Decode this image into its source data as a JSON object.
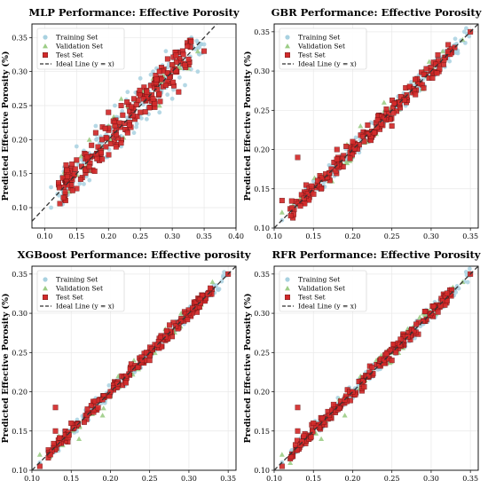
{
  "colors": {
    "training": "#a8d1e0",
    "validation": "#9ccd86",
    "test": "#d32a2a",
    "test_edge": "#5a1010",
    "ideal_line": "#333333"
  },
  "chart_data": [
    {
      "type": "scatter",
      "title": "MLP Performance: Effective Porosity",
      "xlabel": "",
      "ylabel": "Predicted Effective Porosity (%)",
      "xlim": [
        0.08,
        0.4
      ],
      "ylim": [
        0.07,
        0.37
      ],
      "xticks": [
        "0.10",
        "0.15",
        "0.20",
        "0.25",
        "0.30",
        "0.35",
        "0.40"
      ],
      "yticks": [
        "0.10",
        "0.15",
        "0.20",
        "0.25",
        "0.30",
        "0.35"
      ],
      "legend": [
        "Training Set",
        "Validation Set",
        "Test Set",
        "Ideal Line (y = x)"
      ],
      "legend_position": "top-left",
      "grid": true,
      "model_noise": 0.022,
      "series": [
        {
          "name": "Training Set",
          "x": [
            0.11,
            0.11,
            0.12,
            0.13,
            0.13,
            0.15,
            0.16,
            0.17,
            0.18,
            0.19,
            0.2,
            0.21,
            0.22,
            0.23,
            0.24,
            0.25,
            0.26,
            0.27,
            0.28,
            0.29,
            0.3,
            0.31,
            0.32,
            0.33,
            0.34,
            0.35
          ],
          "y": [
            0.1,
            0.13,
            0.12,
            0.11,
            0.14,
            0.19,
            0.17,
            0.18,
            0.22,
            0.17,
            0.22,
            0.25,
            0.19,
            0.27,
            0.21,
            0.29,
            0.23,
            0.3,
            0.24,
            0.33,
            0.26,
            0.33,
            0.28,
            0.35,
            0.3,
            0.34
          ]
        },
        {
          "name": "Validation Set",
          "x": [
            0.17,
            0.2,
            0.22,
            0.24,
            0.26,
            0.27,
            0.28,
            0.3,
            0.34
          ],
          "y": [
            0.2,
            0.22,
            0.26,
            0.23,
            0.27,
            0.29,
            0.25,
            0.31,
            0.33
          ]
        },
        {
          "name": "Test Set",
          "x": [
            0.13,
            0.15,
            0.17,
            0.18,
            0.19,
            0.2,
            0.21,
            0.22,
            0.23,
            0.24,
            0.25,
            0.26,
            0.27,
            0.28,
            0.29,
            0.3,
            0.31,
            0.35
          ],
          "y": [
            0.13,
            0.17,
            0.16,
            0.21,
            0.2,
            0.24,
            0.22,
            0.25,
            0.21,
            0.26,
            0.24,
            0.27,
            0.26,
            0.3,
            0.28,
            0.31,
            0.27,
            0.33
          ]
        }
      ]
    },
    {
      "type": "scatter",
      "title": "GBR Performance: Effective Porosity",
      "xlabel": "",
      "ylabel": "Predicted Effective Porosity (%)",
      "xlim": [
        0.1,
        0.36
      ],
      "ylim": [
        0.1,
        0.36
      ],
      "xticks": [
        "0.10",
        "0.15",
        "0.20",
        "0.25",
        "0.30",
        "0.35"
      ],
      "yticks": [
        "0.10",
        "0.15",
        "0.20",
        "0.25",
        "0.30",
        "0.35"
      ],
      "legend": [
        "Training Set",
        "Validation Set",
        "Test Set",
        "Ideal Line (y = x)"
      ],
      "legend_position": "top-left",
      "grid": true,
      "model_noise": 0.01,
      "series": [
        {
          "name": "Training Set",
          "x": [
            0.11,
            0.15,
            0.17,
            0.19,
            0.21,
            0.23,
            0.25,
            0.27,
            0.29,
            0.31,
            0.33
          ],
          "y": [
            0.11,
            0.16,
            0.18,
            0.19,
            0.22,
            0.23,
            0.25,
            0.27,
            0.29,
            0.31,
            0.33
          ]
        },
        {
          "name": "Validation Set",
          "x": [
            0.11,
            0.13,
            0.17,
            0.21,
            0.23,
            0.24,
            0.27,
            0.29,
            0.34
          ],
          "y": [
            0.12,
            0.13,
            0.16,
            0.23,
            0.22,
            0.26,
            0.28,
            0.3,
            0.34
          ]
        },
        {
          "name": "Test Set",
          "x": [
            0.11,
            0.13,
            0.16,
            0.17,
            0.18,
            0.2,
            0.22,
            0.24,
            0.25,
            0.26,
            0.28,
            0.3,
            0.33,
            0.35
          ],
          "y": [
            0.135,
            0.19,
            0.15,
            0.17,
            0.2,
            0.21,
            0.22,
            0.24,
            0.23,
            0.26,
            0.27,
            0.3,
            0.33,
            0.35
          ]
        }
      ]
    },
    {
      "type": "scatter",
      "title": "XGBoost Performance: Effective porosity",
      "xlabel": "",
      "ylabel": "Predicted Effective Porosity (%)",
      "xlim": [
        0.1,
        0.36
      ],
      "ylim": [
        0.1,
        0.36
      ],
      "xticks": [
        "0.10",
        "0.15",
        "0.20",
        "0.25",
        "0.30",
        "0.35"
      ],
      "yticks": [
        "0.10",
        "0.15",
        "0.20",
        "0.25",
        "0.30",
        "0.35"
      ],
      "legend": [
        "Training Set",
        "Validation Set",
        "Test Set",
        "Ideal Line (y = x)"
      ],
      "legend_position": "top-left",
      "grid": true,
      "model_noise": 0.007,
      "series": [
        {
          "name": "Training Set",
          "x": [
            0.11,
            0.15,
            0.18,
            0.2,
            0.22,
            0.25,
            0.27,
            0.29,
            0.31,
            0.33
          ],
          "y": [
            0.11,
            0.15,
            0.18,
            0.2,
            0.22,
            0.25,
            0.27,
            0.29,
            0.31,
            0.33
          ]
        },
        {
          "name": "Validation Set",
          "x": [
            0.11,
            0.15,
            0.16,
            0.19,
            0.21,
            0.23,
            0.25,
            0.27,
            0.29,
            0.33
          ],
          "y": [
            0.12,
            0.16,
            0.14,
            0.17,
            0.22,
            0.24,
            0.25,
            0.28,
            0.3,
            0.34
          ]
        },
        {
          "name": "Test Set",
          "x": [
            0.11,
            0.13,
            0.13,
            0.15,
            0.17,
            0.19,
            0.2,
            0.22,
            0.24,
            0.25,
            0.26,
            0.27,
            0.29,
            0.3,
            0.35
          ],
          "y": [
            0.105,
            0.18,
            0.15,
            0.16,
            0.17,
            0.19,
            0.2,
            0.22,
            0.24,
            0.24,
            0.26,
            0.27,
            0.29,
            0.3,
            0.35
          ]
        }
      ]
    },
    {
      "type": "scatter",
      "title": "RFR Performance: Effective Porosity",
      "xlabel": "",
      "ylabel": "Predicted Effective Porosity (%)",
      "xlim": [
        0.1,
        0.36
      ],
      "ylim": [
        0.1,
        0.36
      ],
      "xticks": [
        "0.10",
        "0.15",
        "0.20",
        "0.25",
        "0.30",
        "0.35"
      ],
      "yticks": [
        "0.10",
        "0.15",
        "0.20",
        "0.25",
        "0.30",
        "0.35"
      ],
      "legend": [
        "Training Set",
        "Validation Set",
        "Test Set",
        "Ideal Line (y = x)"
      ],
      "legend_position": "top-left",
      "grid": true,
      "model_noise": 0.008,
      "series": [
        {
          "name": "Training Set",
          "x": [
            0.11,
            0.15,
            0.18,
            0.2,
            0.22,
            0.25,
            0.27,
            0.29,
            0.31,
            0.33
          ],
          "y": [
            0.11,
            0.15,
            0.18,
            0.2,
            0.22,
            0.25,
            0.27,
            0.29,
            0.31,
            0.33
          ]
        },
        {
          "name": "Validation Set",
          "x": [
            0.11,
            0.15,
            0.16,
            0.19,
            0.21,
            0.23,
            0.25,
            0.27,
            0.29,
            0.34
          ],
          "y": [
            0.12,
            0.16,
            0.14,
            0.17,
            0.22,
            0.24,
            0.25,
            0.28,
            0.3,
            0.34
          ]
        },
        {
          "name": "Test Set",
          "x": [
            0.11,
            0.13,
            0.13,
            0.15,
            0.17,
            0.19,
            0.2,
            0.22,
            0.24,
            0.25,
            0.26,
            0.27,
            0.29,
            0.3,
            0.35
          ],
          "y": [
            0.105,
            0.18,
            0.15,
            0.16,
            0.17,
            0.19,
            0.2,
            0.22,
            0.24,
            0.24,
            0.26,
            0.27,
            0.29,
            0.3,
            0.35
          ]
        }
      ]
    }
  ]
}
